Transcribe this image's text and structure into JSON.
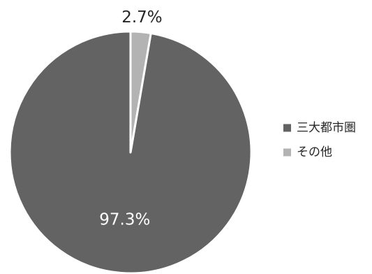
{
  "chart_data": {
    "type": "pie",
    "categories": [
      "三大都市圏",
      "その他"
    ],
    "values": [
      97.3,
      2.7
    ],
    "data_labels": [
      "97.3%",
      "2.7%"
    ],
    "colors": [
      "#636363",
      "#b3b3b3"
    ],
    "label_colors": [
      "#ffffff",
      "#262626"
    ],
    "legend_position": "right",
    "start_angle": "12 o'clock",
    "direction": "counter-clockwise",
    "title": ""
  }
}
